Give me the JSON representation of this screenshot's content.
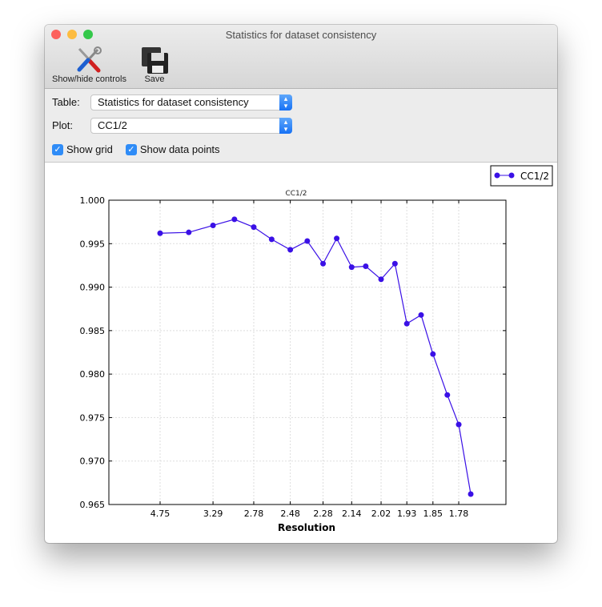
{
  "window": {
    "title": "Statistics for dataset consistency"
  },
  "toolbar": {
    "show_hide_label": "Show/hide controls",
    "save_label": "Save"
  },
  "controls": {
    "table_label": "Table:",
    "table_value": "Statistics for dataset consistency",
    "plot_label": "Plot:",
    "plot_value": "CC1/2",
    "show_grid_label": "Show grid",
    "show_grid_checked": true,
    "show_points_label": "Show data points",
    "show_points_checked": true
  },
  "chart_data": {
    "type": "line",
    "title": "CC1/2",
    "xlabel": "Resolution",
    "ylabel": "",
    "x_scale": "1/d^2",
    "ylim": [
      0.965,
      1.0
    ],
    "xticks": [
      "4.75",
      "3.29",
      "2.78",
      "2.48",
      "2.28",
      "2.14",
      "2.02",
      "1.93",
      "1.85",
      "1.78"
    ],
    "yticks": [
      "1.000",
      "0.995",
      "0.990",
      "0.985",
      "0.980",
      "0.975",
      "0.970",
      "0.965"
    ],
    "grid": true,
    "legend": "top-right",
    "color": "#3a10e6",
    "series": [
      {
        "name": "CC1/2",
        "x": [
          4.75,
          3.77,
          3.29,
          2.99,
          2.78,
          2.62,
          2.48,
          2.37,
          2.28,
          2.21,
          2.14,
          2.08,
          2.02,
          1.97,
          1.93,
          1.885,
          1.85,
          1.81,
          1.78,
          1.75
        ],
        "values": [
          0.9962,
          0.9963,
          0.9971,
          0.9978,
          0.9969,
          0.9955,
          0.9943,
          0.9953,
          0.9927,
          0.9956,
          0.9923,
          0.9924,
          0.9909,
          0.9927,
          0.9858,
          0.9868,
          0.9823,
          0.9776,
          0.9742,
          0.9662
        ]
      }
    ]
  }
}
